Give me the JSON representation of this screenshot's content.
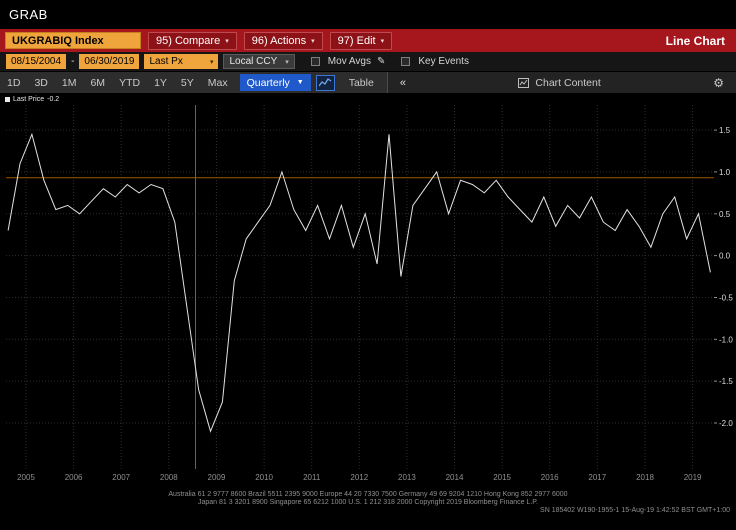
{
  "window": {
    "title": "GRAB"
  },
  "command_bar": {
    "ticker": "UKGRABIQ Index",
    "compare": "95) Compare",
    "actions": "96) Actions",
    "edit": "97) Edit",
    "view_label": "Line Chart"
  },
  "filter_bar": {
    "date_from": "08/15/2004",
    "date_separator": "-",
    "date_to": "06/30/2019",
    "field": "Last Px",
    "currency": "Local CCY",
    "mov_avgs_label": "Mov Avgs",
    "key_events_label": "Key Events"
  },
  "range_bar": {
    "ranges": [
      "1D",
      "3D",
      "1M",
      "6M",
      "YTD",
      "1Y",
      "5Y",
      "Max"
    ],
    "period": "Quarterly",
    "table_label": "Table",
    "collapse_label": "«",
    "chart_content_label": "Chart Content"
  },
  "chart_data": {
    "type": "line",
    "title": "UKGRABIQ Index - Last Price (Quarterly)",
    "legend": {
      "label": "Last Price",
      "value": "-0.2"
    },
    "series": [
      {
        "name": "Last Price",
        "values": [
          0.3,
          1.1,
          1.45,
          0.9,
          0.55,
          0.6,
          0.5,
          0.65,
          0.8,
          0.7,
          0.85,
          0.75,
          0.85,
          0.8,
          0.4,
          -0.6,
          -1.6,
          -2.1,
          -1.75,
          -0.3,
          0.2,
          0.4,
          0.6,
          1.0,
          0.55,
          0.3,
          0.6,
          0.2,
          0.6,
          0.1,
          0.5,
          -0.1,
          1.45,
          -0.25,
          0.6,
          0.8,
          1.0,
          0.5,
          0.9,
          0.85,
          0.75,
          0.9,
          0.7,
          0.55,
          0.4,
          0.7,
          0.35,
          0.6,
          0.45,
          0.7,
          0.4,
          0.3,
          0.55,
          0.35,
          0.1,
          0.5,
          0.7,
          0.2,
          0.5,
          -0.2
        ]
      }
    ],
    "x_start_t": 2004.625,
    "x_step": 0.25,
    "x_domain": [
      2004.58,
      2019.45
    ],
    "x_years": [
      2005,
      2006,
      2007,
      2008,
      2009,
      2010,
      2011,
      2012,
      2013,
      2014,
      2015,
      2016,
      2017,
      2018,
      2019
    ],
    "y_ticks": [
      1.5,
      1.0,
      0.5,
      0.0,
      -0.5,
      -1.0,
      -1.5,
      -2.0
    ],
    "ylim": [
      -2.55,
      1.8
    ],
    "line_color": "#e2e2e2",
    "grid_color": "#2e2e2e",
    "crosshair": {
      "t": 2008.56,
      "value": 0.93,
      "color": "#9a5a00"
    }
  },
  "footer": {
    "line1": "Australia 61 2 9777 8600 Brazil 5511 2395 9000 Europe 44 20 7330 7500 Germany 49 69 9204 1210 Hong Kong 852 2977 6000",
    "line2": "Japan 81 3 3201 8900 Singapore 65 6212 1000 U.S. 1 212 318 2000 Copyright 2019 Bloomberg Finance L.P.",
    "line3": "SN 185402 W190-1955-1 15-Aug-19 1:42:52 BST GMT+1:00"
  }
}
